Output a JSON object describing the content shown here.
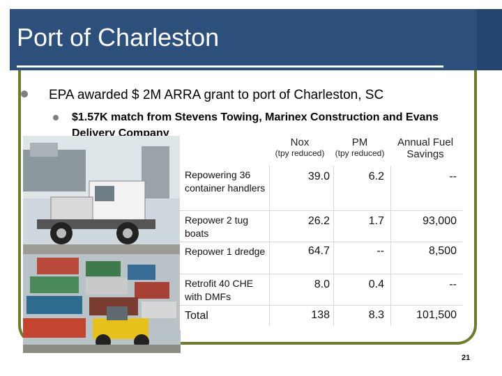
{
  "title": "Port of Charleston",
  "bullets": [
    {
      "text": "EPA awarded $ 2M ARRA grant to port of Charleston, SC"
    },
    {
      "text": "$1.57K match from Stevens Towing, Marinex Construction and Evans Delivery Company"
    }
  ],
  "photo": {
    "caption": ""
  },
  "table": {
    "headers": [
      {
        "main": "Nox",
        "sub": "(tpy reduced)"
      },
      {
        "main": "PM",
        "sub": "(tpy reduced)"
      },
      {
        "main": "Annual Fuel Savings",
        "sub": ""
      }
    ],
    "rows": [
      {
        "label": "Repowering 36 container handlers",
        "nox": "39.0",
        "pm": "6.2",
        "savings": "--"
      },
      {
        "label": "Repower 2 tug boats",
        "nox": "26.2",
        "pm": "1.7",
        "savings": "93,000"
      },
      {
        "label": "Repower 1 dredge",
        "nox": "64.7",
        "pm": "--",
        "savings": "8,500"
      },
      {
        "label": "Retrofit 40 CHE with DMFs",
        "nox": "8.0",
        "pm": "0.4",
        "savings": "--"
      },
      {
        "label": "Total",
        "nox": "138",
        "pm": "8.3",
        "savings": "101,500"
      }
    ]
  },
  "page_number": "21",
  "colors": {
    "title_bar": "#2c4f7c",
    "frame": "#6b7c2c",
    "bullet": "#7f7f7f"
  }
}
